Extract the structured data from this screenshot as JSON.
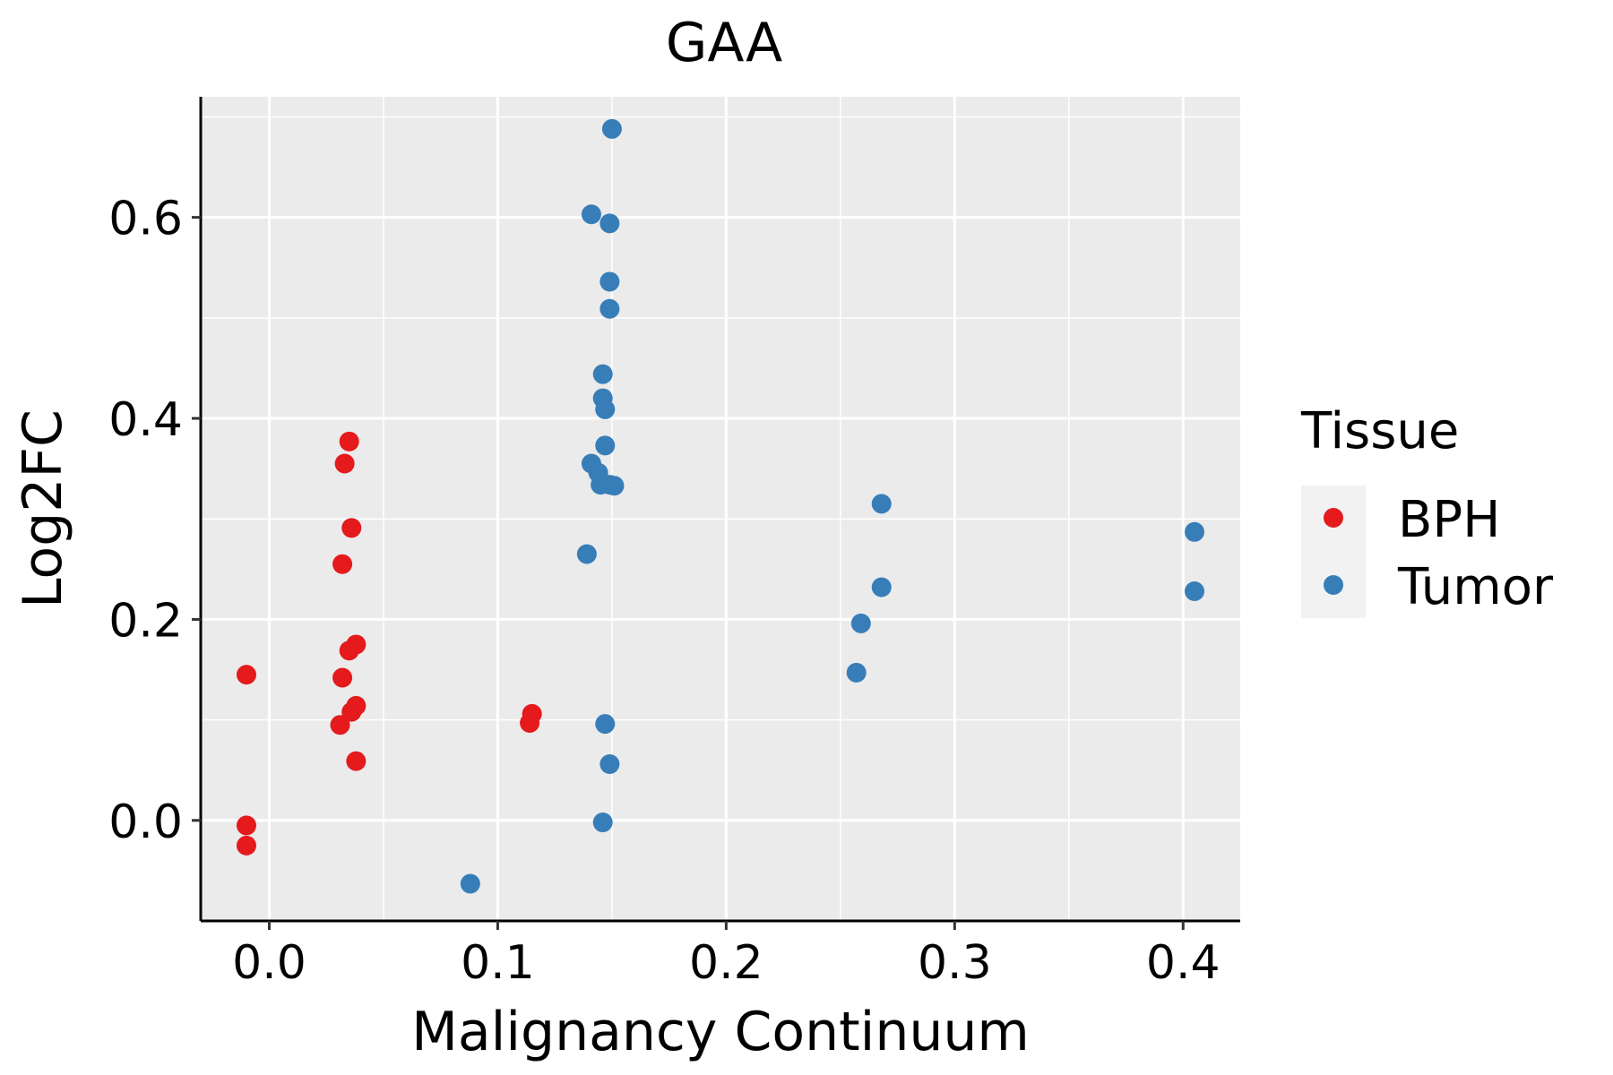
{
  "chart_data": {
    "type": "scatter",
    "title": "GAA",
    "xlabel": "Malignancy Continuum",
    "ylabel": "Log2FC",
    "xlim": [
      -0.03,
      0.425
    ],
    "ylim": [
      -0.1,
      0.72
    ],
    "xticks": [
      0.0,
      0.1,
      0.2,
      0.3,
      0.4
    ],
    "xtick_labels": [
      "0.0",
      "0.1",
      "0.2",
      "0.3",
      "0.4"
    ],
    "yticks": [
      0.0,
      0.2,
      0.4,
      0.6
    ],
    "ytick_labels": [
      "0.0",
      "0.2",
      "0.4",
      "0.6"
    ],
    "grid": true,
    "legend": {
      "title": "Tissue",
      "position": "right",
      "entries": [
        {
          "label": "BPH",
          "color": "#E41A1C"
        },
        {
          "label": "Tumor",
          "color": "#377EB8"
        }
      ]
    },
    "series": [
      {
        "name": "BPH",
        "color": "#E41A1C",
        "points": [
          [
            -0.01,
            0.145
          ],
          [
            -0.01,
            -0.005
          ],
          [
            -0.01,
            -0.025
          ],
          [
            0.035,
            0.377
          ],
          [
            0.033,
            0.355
          ],
          [
            0.036,
            0.291
          ],
          [
            0.032,
            0.255
          ],
          [
            0.038,
            0.175
          ],
          [
            0.035,
            0.169
          ],
          [
            0.032,
            0.142
          ],
          [
            0.038,
            0.114
          ],
          [
            0.036,
            0.108
          ],
          [
            0.031,
            0.095
          ],
          [
            0.038,
            0.059
          ],
          [
            0.115,
            0.106
          ],
          [
            0.114,
            0.097
          ]
        ]
      },
      {
        "name": "Tumor",
        "color": "#377EB8",
        "points": [
          [
            0.15,
            0.688
          ],
          [
            0.141,
            0.603
          ],
          [
            0.149,
            0.594
          ],
          [
            0.149,
            0.536
          ],
          [
            0.149,
            0.509
          ],
          [
            0.146,
            0.444
          ],
          [
            0.146,
            0.42
          ],
          [
            0.147,
            0.409
          ],
          [
            0.147,
            0.373
          ],
          [
            0.141,
            0.355
          ],
          [
            0.144,
            0.346
          ],
          [
            0.145,
            0.334
          ],
          [
            0.149,
            0.334
          ],
          [
            0.151,
            0.333
          ],
          [
            0.139,
            0.265
          ],
          [
            0.147,
            0.096
          ],
          [
            0.149,
            0.056
          ],
          [
            0.146,
            -0.002
          ],
          [
            0.088,
            -0.063
          ],
          [
            0.268,
            0.315
          ],
          [
            0.268,
            0.232
          ],
          [
            0.259,
            0.196
          ],
          [
            0.257,
            0.147
          ],
          [
            0.405,
            0.287
          ],
          [
            0.405,
            0.228
          ]
        ]
      }
    ]
  }
}
